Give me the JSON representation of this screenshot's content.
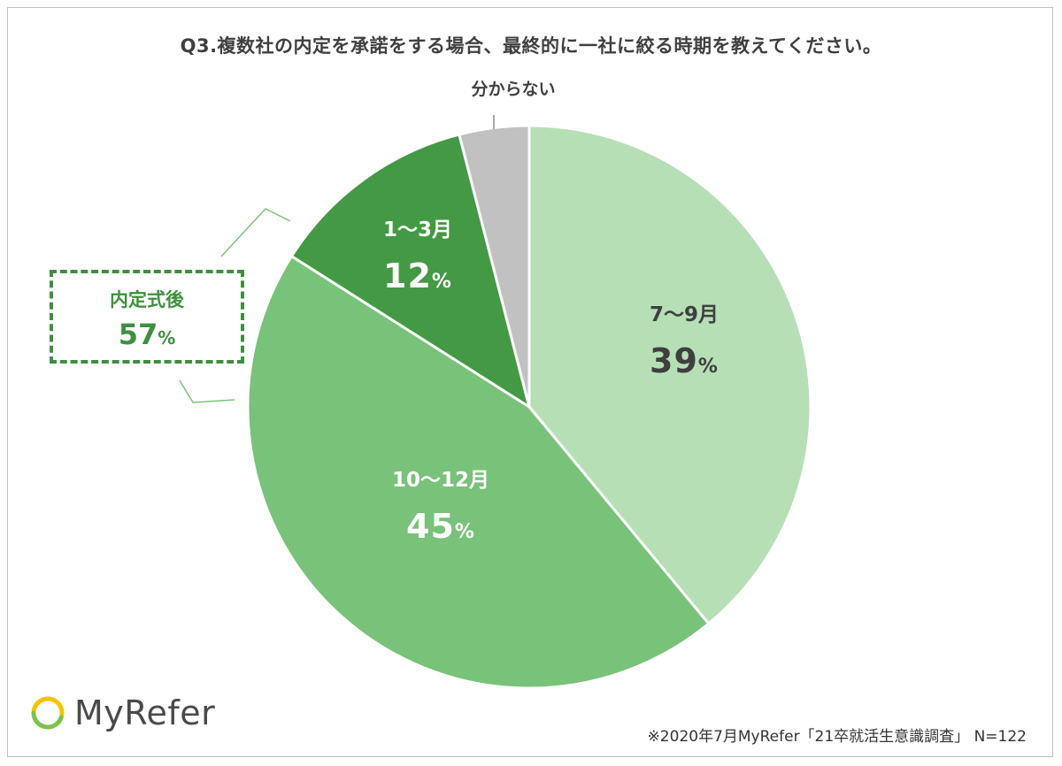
{
  "title": "Q3.複数社の内定を承諾をする場合、最終的に一社に絞る時期を教えてください。",
  "chart_data": {
    "type": "pie",
    "title": "Q3.複数社の内定を承諾をする場合、最終的に一社に絞る時期を教えてください。",
    "start": "12 o'clock, clockwise",
    "categories": [
      "7〜9月",
      "10〜12月",
      "1〜3月",
      "分からない"
    ],
    "values": [
      39,
      45,
      12,
      4
    ],
    "data_labels": [
      "39",
      "45",
      "12",
      ""
    ],
    "unit": "%",
    "colors": [
      "#b6dfb6",
      "#79c279",
      "#449944",
      "#c1c1c1"
    ],
    "label_colors": [
      "#3f3f3f",
      "#ffffff",
      "#ffffff",
      "#3f3f3f"
    ],
    "grouped_callout": {
      "label": "内定式後",
      "value": "57",
      "unit": "%",
      "color": "#3f8f3f"
    }
  },
  "logo": {
    "text": "MyRefer",
    "ring_colors": [
      "#f5c400",
      "#7cc24a"
    ]
  },
  "footnote": "※2020年7月MyRefer「21卒就活生意識調査」 N=122"
}
